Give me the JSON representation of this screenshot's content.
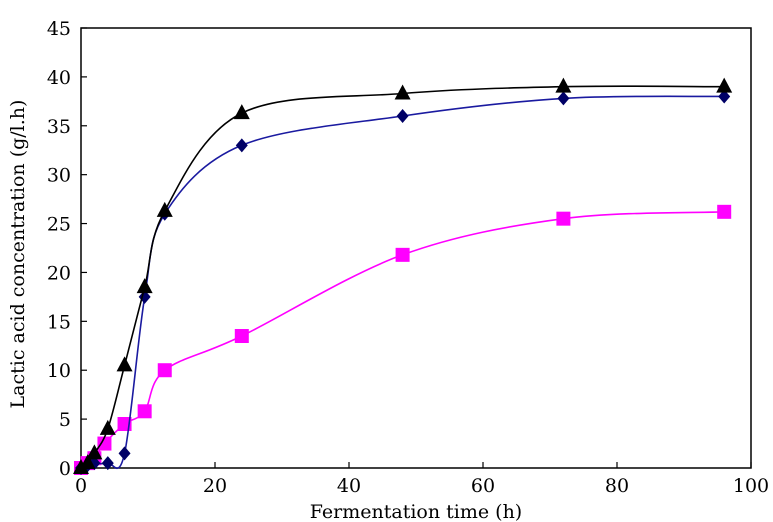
{
  "chart_data": {
    "type": "line",
    "title": "",
    "xlabel": "Fermentation time (h)",
    "ylabel": "Lactic acid concentration (g/l.h)",
    "xlim": [
      0,
      100
    ],
    "ylim": [
      0,
      45
    ],
    "xticks": [
      0,
      20,
      40,
      60,
      80,
      100
    ],
    "yticks": [
      0,
      5,
      10,
      15,
      20,
      25,
      30,
      35,
      40,
      45
    ],
    "grid": false,
    "legend": "none",
    "series": [
      {
        "marker": "triangle",
        "color": "#000000",
        "line_color": "#000000",
        "x": [
          0,
          1,
          2,
          4,
          6.5,
          9.5,
          12.5,
          24,
          48,
          72,
          96
        ],
        "y": [
          0,
          0.5,
          1.5,
          4,
          10.5,
          18.5,
          26.3,
          36.3,
          38.3,
          39,
          39
        ]
      },
      {
        "marker": "diamond",
        "color": "#000066",
        "line_color": "#1a1aa0",
        "x": [
          0,
          1,
          2,
          4,
          6.5,
          9.5,
          12.5,
          24,
          48,
          72,
          96
        ],
        "y": [
          0,
          0.3,
          0.5,
          0.5,
          1.5,
          17.5,
          26,
          33,
          36,
          37.8,
          38
        ]
      },
      {
        "marker": "square",
        "color": "#ff00ff",
        "line_color": "#ff00ff",
        "x": [
          0,
          1,
          2,
          3.5,
          6.5,
          9.5,
          12.5,
          24,
          48,
          72,
          96
        ],
        "y": [
          0,
          0.5,
          1,
          2.5,
          4.5,
          5.8,
          10,
          13.5,
          21.8,
          25.5,
          26.2
        ]
      }
    ]
  }
}
